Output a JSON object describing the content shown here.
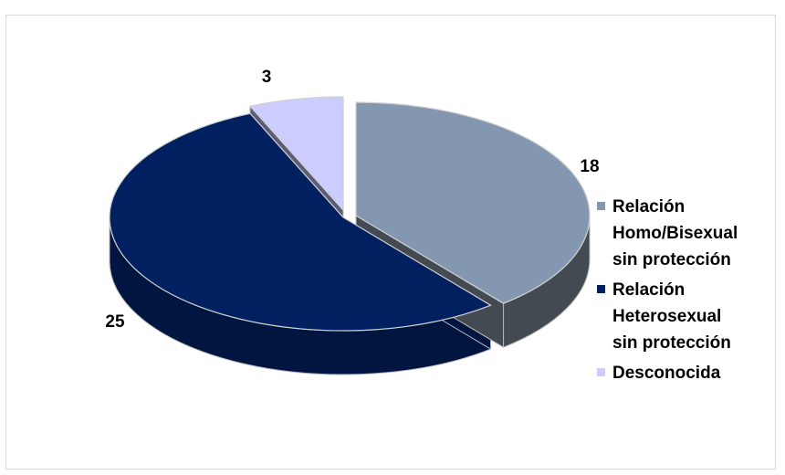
{
  "chart_data": {
    "type": "pie",
    "style": "3d-exploded",
    "categories": [
      "Relación Homo/Bisexual sin protección",
      "Relación Heterosexual sin protección",
      "Desconocida"
    ],
    "values": [
      18,
      25,
      3
    ],
    "data_labels": [
      "18",
      "25",
      "3"
    ],
    "legend_labels": [
      "Relación\nHomo/Bisexual\nsin protección",
      "Relación\nHeterosexual\nsin protección",
      "Desconocida"
    ],
    "colors": [
      "#8497b0",
      "#002060",
      "#ccccff"
    ],
    "side_colors": [
      "#434a52",
      "#001640",
      "#5c5c77"
    ],
    "legend_position": "right"
  }
}
